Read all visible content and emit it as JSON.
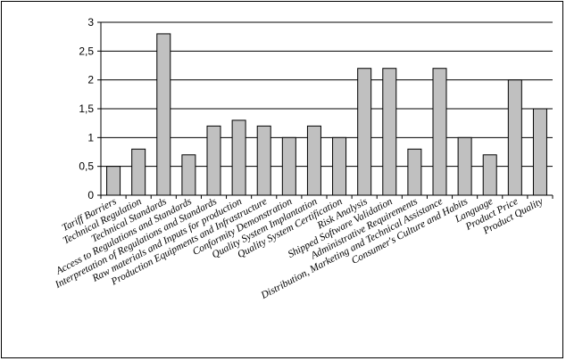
{
  "chart_data": {
    "type": "bar",
    "title": "",
    "xlabel": "",
    "ylabel": "",
    "ylim": [
      0,
      3
    ],
    "yticks": [
      "0",
      "0,5",
      "1",
      "1,5",
      "2",
      "2,5",
      "3"
    ],
    "grid": "horizontal",
    "legend": "none",
    "bar_color": "#c0c0c0",
    "categories": [
      "Tariff Barriers",
      "Technical Regulation",
      "Technical Standards",
      "Access to Regulations and Standards",
      "Interpretation of Regulations and Standards",
      "Raw materials and Inputs for production",
      "Production Equipments and Infrastructure",
      "Conformity Demonstration",
      "Quality System Implantation",
      "Quality System Certification",
      "Risk Analysis",
      "Shipped Software Validation",
      "Administrative Requirements",
      "Distribution, Marketing and Technical Assistance",
      "Consumer's Culture and Habits",
      "Language",
      "Product Price",
      "Product Quality"
    ],
    "values": [
      0.5,
      0.8,
      2.8,
      0.7,
      1.2,
      1.3,
      1.2,
      1.0,
      1.2,
      1.0,
      2.2,
      2.2,
      0.8,
      2.2,
      1.0,
      0.7,
      2.0,
      1.5
    ]
  }
}
